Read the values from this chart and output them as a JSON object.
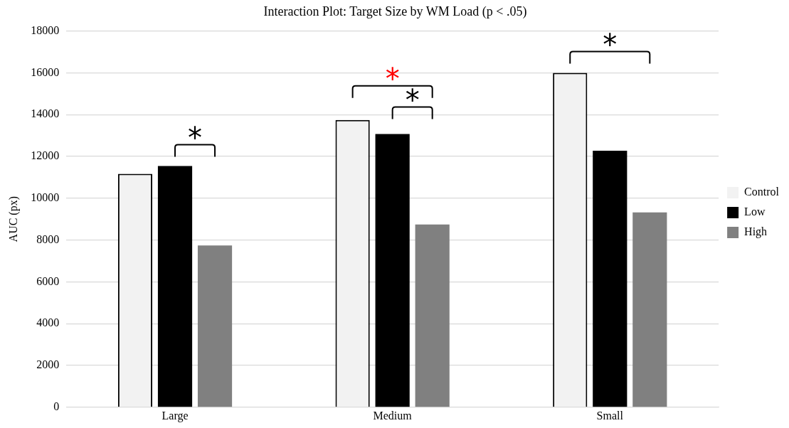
{
  "chart_data": {
    "type": "bar",
    "title": "Interaction Plot: Target Size by WM Load (p < .05)",
    "ylabel": "AUC (px)",
    "categories": [
      "Large",
      "Medium",
      "Small"
    ],
    "series": [
      {
        "name": "Control",
        "color": "#f2f2f2",
        "values": [
          11170,
          13740,
          16000
        ]
      },
      {
        "name": "Low",
        "color": "#000000",
        "values": [
          11540,
          13070,
          12270
        ]
      },
      {
        "name": "High",
        "color": "#808080",
        "values": [
          7740,
          8740,
          9320
        ]
      }
    ],
    "ylim": [
      0,
      18000
    ],
    "yticks": [
      0,
      2000,
      4000,
      6000,
      8000,
      10000,
      12000,
      14000,
      16000,
      18000
    ],
    "grid": "y",
    "legend": "right",
    "annotations": [
      "*",
      "*",
      "*",
      "*"
    ]
  }
}
